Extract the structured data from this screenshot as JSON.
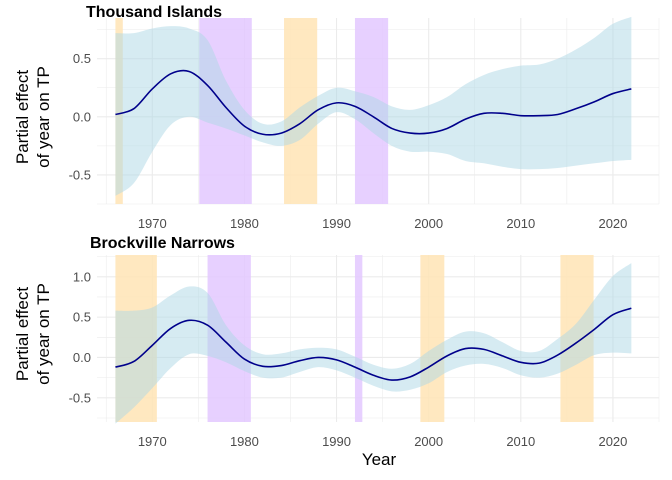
{
  "chart_data": {
    "type": "line",
    "xlabel": "Year",
    "ylabel_lines": [
      "Partial effect",
      "of year on TP"
    ],
    "xlim": [
      1964,
      2025
    ],
    "xticks": [
      1970,
      1980,
      1990,
      2000,
      2010,
      2020
    ],
    "colors": {
      "line": "#00008B",
      "ribbon": "#ADD8E6",
      "orange_band": "#FFE4B5",
      "purple_band": "#E3C8FF",
      "grid": "#EBEBEB"
    },
    "panels": [
      {
        "title": "Thousand Islands",
        "ylim": [
          -0.75,
          0.85
        ],
        "yticks": [
          -0.5,
          0.0,
          0.5
        ],
        "ytick_labels": [
          "-0.5",
          "0.0",
          "0.5"
        ],
        "bands": [
          {
            "start": 1966.0,
            "end": 1966.8,
            "kind": "orange"
          },
          {
            "start": 1975.1,
            "end": 1980.8,
            "kind": "purple"
          },
          {
            "start": 1984.3,
            "end": 1987.9,
            "kind": "orange"
          },
          {
            "start": 1992.0,
            "end": 1995.6,
            "kind": "purple"
          }
        ],
        "series": {
          "x": [
            1966,
            1968,
            1970,
            1972,
            1974,
            1976,
            1978,
            1980,
            1982,
            1984,
            1986,
            1988,
            1990,
            1992,
            1994,
            1996,
            1998,
            2000,
            2002,
            2004,
            2006,
            2008,
            2010,
            2012,
            2014,
            2016,
            2018,
            2020,
            2022
          ],
          "fit": [
            0.02,
            0.07,
            0.24,
            0.37,
            0.39,
            0.27,
            0.08,
            -0.08,
            -0.15,
            -0.14,
            -0.06,
            0.06,
            0.12,
            0.09,
            0.0,
            -0.1,
            -0.14,
            -0.14,
            -0.1,
            -0.02,
            0.03,
            0.03,
            0.01,
            0.01,
            0.02,
            0.07,
            0.13,
            0.2,
            0.24
          ],
          "lower": [
            -0.68,
            -0.57,
            -0.3,
            -0.07,
            0.0,
            -0.05,
            -0.1,
            -0.16,
            -0.22,
            -0.25,
            -0.2,
            -0.06,
            0.04,
            -0.02,
            -0.14,
            -0.25,
            -0.3,
            -0.3,
            -0.32,
            -0.38,
            -0.4,
            -0.43,
            -0.45,
            -0.45,
            -0.44,
            -0.42,
            -0.4,
            -0.38,
            -0.37
          ],
          "upper": [
            0.72,
            0.72,
            0.76,
            0.78,
            0.76,
            0.66,
            0.31,
            0.06,
            -0.06,
            -0.04,
            0.08,
            0.18,
            0.25,
            0.22,
            0.17,
            0.09,
            0.06,
            0.1,
            0.17,
            0.28,
            0.36,
            0.41,
            0.44,
            0.45,
            0.5,
            0.58,
            0.68,
            0.8,
            0.86
          ]
        }
      },
      {
        "title": "Brockville Narrows",
        "ylim": [
          -0.8,
          1.27
        ],
        "yticks": [
          -0.5,
          0.0,
          0.5,
          1.0
        ],
        "ytick_labels": [
          "-0.5",
          "0.0",
          "0.5",
          "1.0"
        ],
        "bands": [
          {
            "start": 1966.0,
            "end": 1970.5,
            "kind": "orange"
          },
          {
            "start": 1976.0,
            "end": 1980.7,
            "kind": "purple"
          },
          {
            "start": 1992.0,
            "end": 1992.8,
            "kind": "purple"
          },
          {
            "start": 1999.1,
            "end": 2001.7,
            "kind": "orange"
          },
          {
            "start": 2014.3,
            "end": 2017.9,
            "kind": "orange"
          }
        ],
        "series": {
          "x": [
            1966,
            1968,
            1970,
            1972,
            1974,
            1976,
            1978,
            1980,
            1982,
            1984,
            1986,
            1988,
            1990,
            1992,
            1994,
            1996,
            1998,
            2000,
            2002,
            2004,
            2006,
            2008,
            2010,
            2012,
            2014,
            2016,
            2018,
            2020,
            2022
          ],
          "fit": [
            -0.12,
            -0.05,
            0.15,
            0.36,
            0.46,
            0.4,
            0.19,
            -0.02,
            -0.11,
            -0.1,
            -0.04,
            0.0,
            -0.03,
            -0.12,
            -0.22,
            -0.28,
            -0.24,
            -0.12,
            0.02,
            0.11,
            0.1,
            0.02,
            -0.06,
            -0.07,
            0.03,
            0.18,
            0.35,
            0.53,
            0.61
          ],
          "lower": [
            -0.82,
            -0.62,
            -0.38,
            -0.13,
            0.04,
            0.02,
            -0.06,
            -0.17,
            -0.25,
            -0.25,
            -0.18,
            -0.12,
            -0.16,
            -0.25,
            -0.35,
            -0.42,
            -0.4,
            -0.32,
            -0.18,
            -0.1,
            -0.08,
            -0.13,
            -0.22,
            -0.25,
            -0.2,
            -0.09,
            0.03,
            0.06,
            0.05
          ],
          "upper": [
            0.58,
            0.58,
            0.62,
            0.77,
            0.88,
            0.8,
            0.4,
            0.15,
            0.04,
            0.05,
            0.1,
            0.12,
            0.1,
            0.01,
            -0.09,
            -0.14,
            -0.08,
            0.08,
            0.22,
            0.32,
            0.3,
            0.19,
            0.08,
            0.08,
            0.23,
            0.42,
            0.72,
            1.01,
            1.17
          ]
        }
      }
    ]
  }
}
